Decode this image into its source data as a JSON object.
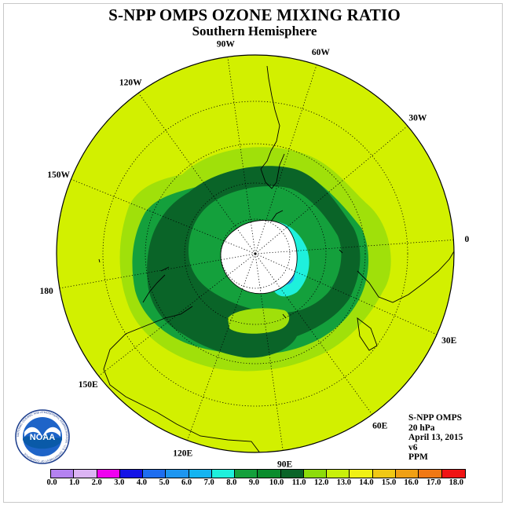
{
  "title": "S-NPP OMPS OZONE MIXING RATIO",
  "subtitle": "Southern Hemisphere",
  "longitude_labels": [
    "0",
    "30E",
    "60E",
    "90E",
    "120E",
    "150E",
    "180",
    "150W",
    "120W",
    "90W",
    "60W",
    "30W"
  ],
  "info": {
    "instrument": "S-NPP OMPS",
    "level": "20 hPa",
    "date": "April 13, 2015",
    "version": "v6",
    "unit": "PPM"
  },
  "colorbar": {
    "ticks": [
      "0.0",
      "1.0",
      "2.0",
      "3.0",
      "4.0",
      "5.0",
      "6.0",
      "7.0",
      "8.0",
      "9.0",
      "10.0",
      "11.0",
      "12.0",
      "13.0",
      "14.0",
      "15.0",
      "16.0",
      "17.0",
      "18.0"
    ],
    "colors": [
      "#b482f0",
      "#dcb4f4",
      "#f000f0",
      "#1414e6",
      "#1e6ef0",
      "#1e96f0",
      "#14b4f0",
      "#1ef0dc",
      "#14a03c",
      "#0a8c2d",
      "#0a6428",
      "#8cdc0a",
      "#c8f00a",
      "#f0f014",
      "#f0c814",
      "#f0a014",
      "#f07814",
      "#f01414",
      "#8c5a3c"
    ]
  },
  "map_colors": {
    "background_level": "#d2f000",
    "ring_11": "#a0e00a",
    "ring_9": "#14a03c",
    "core_10": "#0a6428",
    "polar_low": "#1ef0dc",
    "polar_lower": "#1ea0f0",
    "no_data": "#ffffff"
  },
  "logo": {
    "text": "NOAA",
    "ring_text": "NATIONAL OCEANIC AND ATMOSPHERIC ADMINISTRATION · U.S. DEPARTMENT OF COMMERCE"
  }
}
